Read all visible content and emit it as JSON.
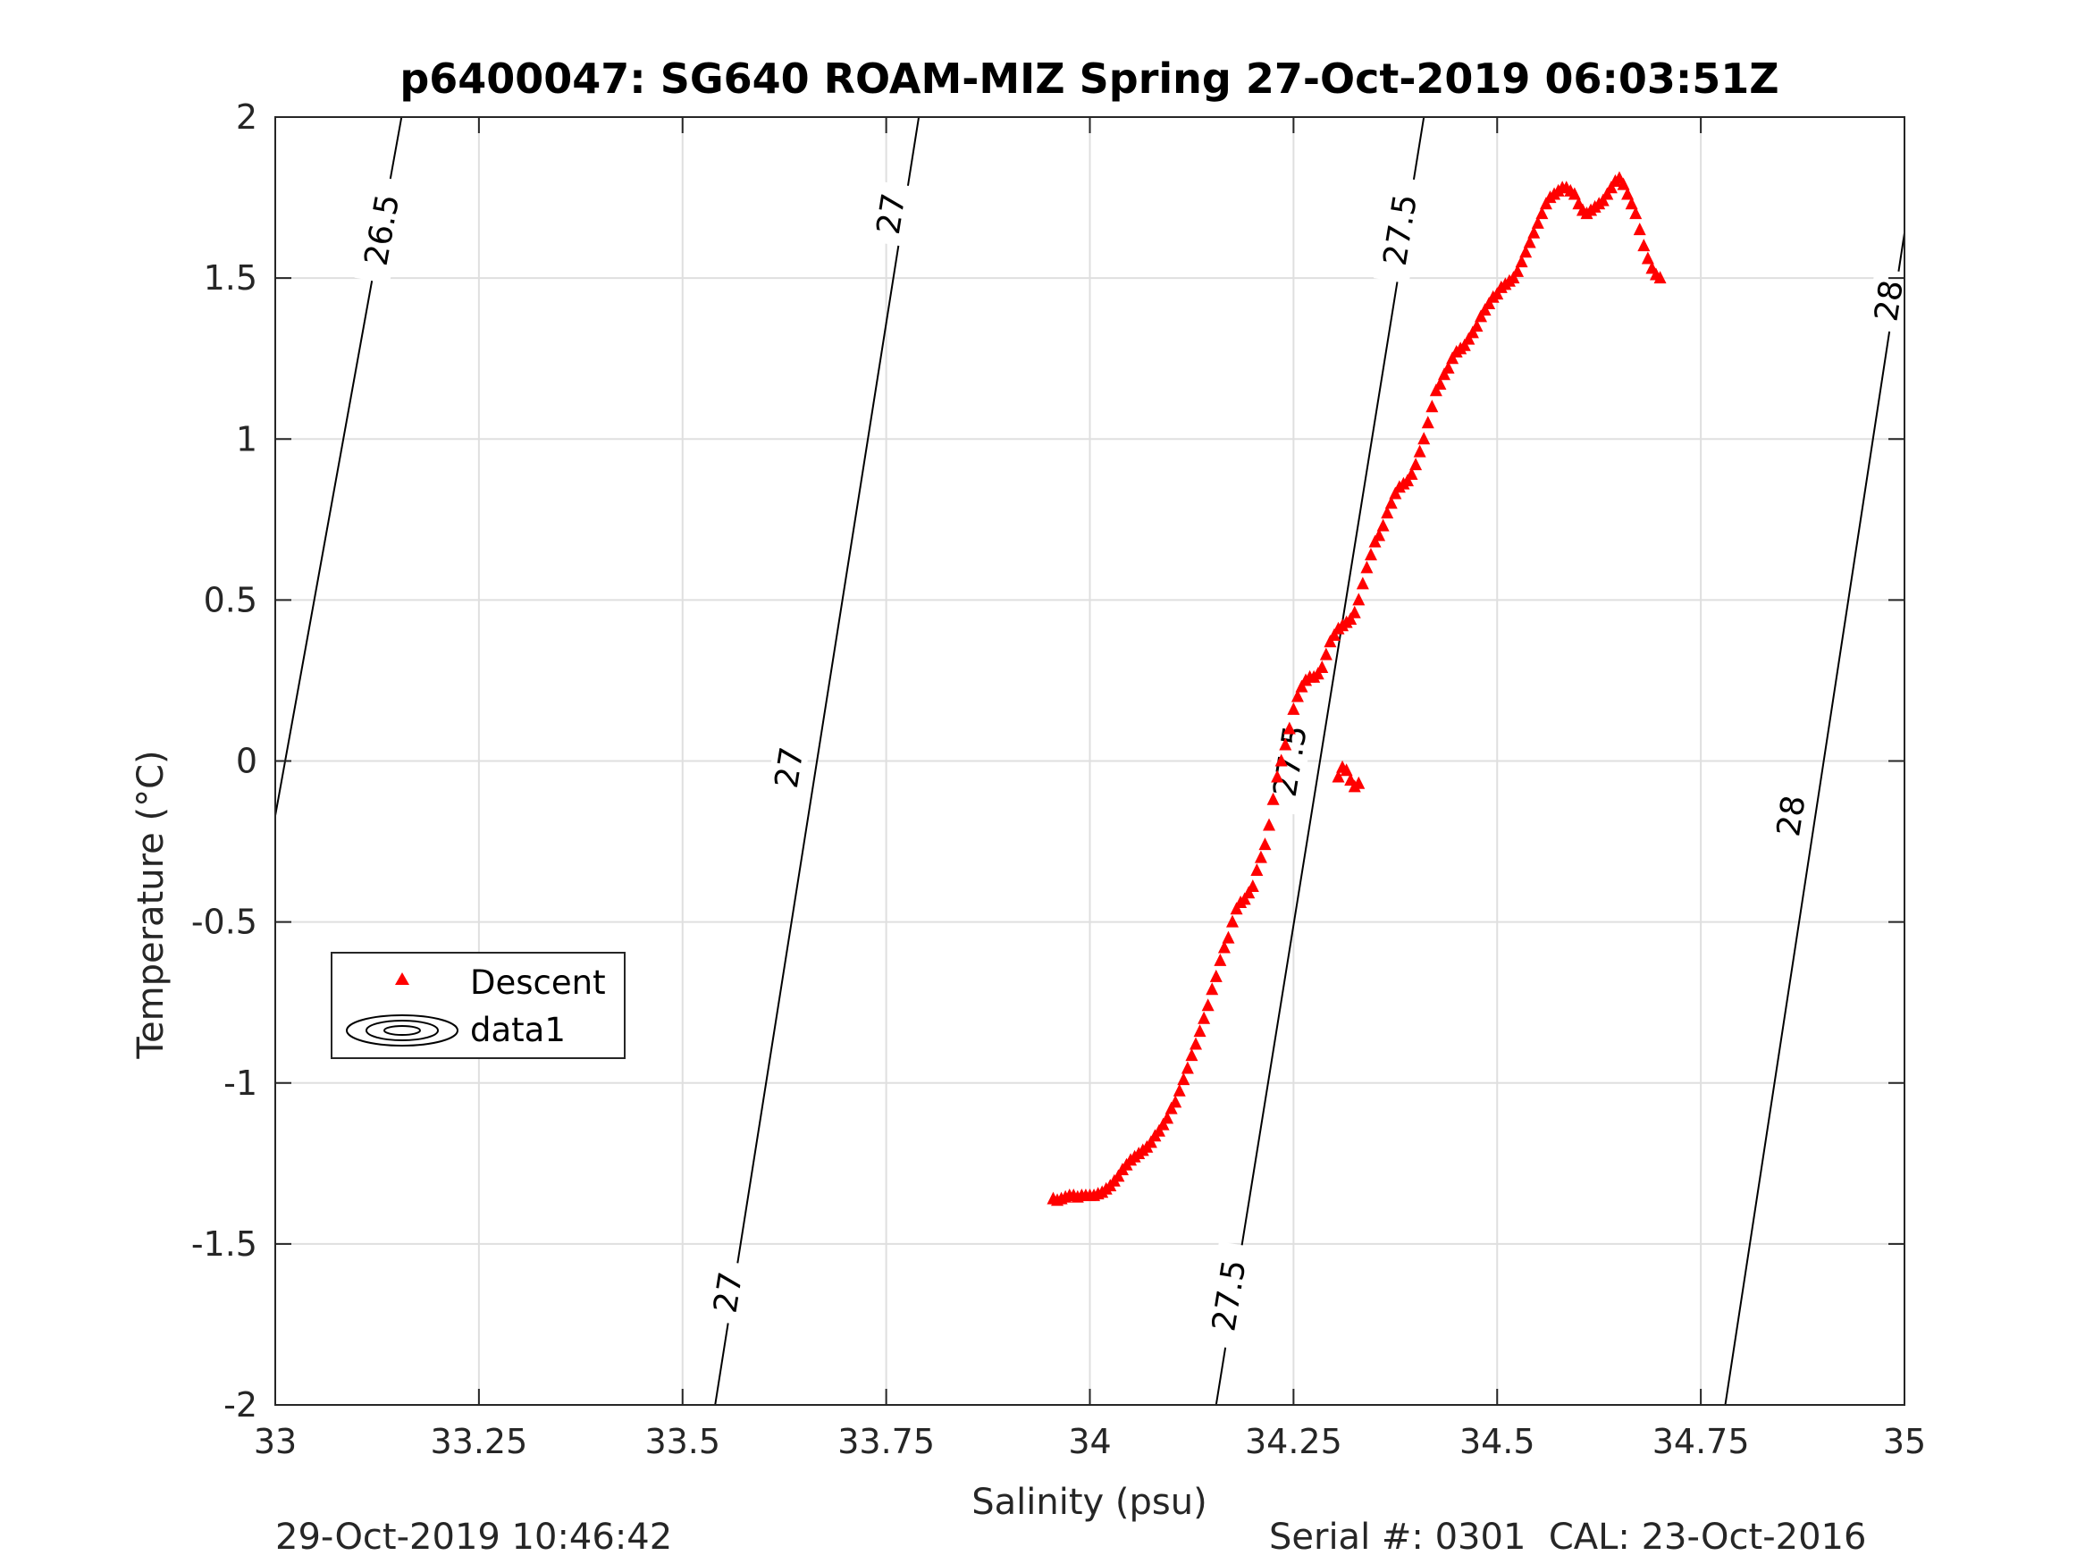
{
  "chart_data": {
    "type": "scatter",
    "title": "p6400047: SG640 ROAM-MIZ Spring 27-Oct-2019 06:03:51Z",
    "xlabel": "Salinity (psu)",
    "ylabel": "Temperature (°C)",
    "xlim": [
      33,
      35
    ],
    "ylim": [
      -2,
      2
    ],
    "xticks": [
      33,
      33.25,
      33.5,
      33.75,
      34,
      34.25,
      34.5,
      34.75,
      35
    ],
    "xtick_labels": [
      "33",
      "33.25",
      "33.5",
      "33.75",
      "34",
      "34.25",
      "34.5",
      "34.75",
      "35"
    ],
    "yticks": [
      -2,
      -1.5,
      -1,
      -0.5,
      0,
      0.5,
      1,
      1.5,
      2
    ],
    "ytick_labels": [
      "-2",
      "-1.5",
      "-1",
      "-0.5",
      "0",
      "0.5",
      "1",
      "1.5",
      "2"
    ],
    "grid": true,
    "legend": {
      "location": "left",
      "entries": [
        "Descent",
        "data1"
      ]
    },
    "series": [
      {
        "name": "Descent",
        "marker": "triangle",
        "color": "#ff0000",
        "x": [
          33.955,
          33.96,
          33.965,
          33.97,
          33.975,
          33.98,
          33.985,
          33.99,
          33.995,
          34.0,
          34.005,
          34.01,
          34.015,
          34.02,
          34.025,
          34.03,
          34.035,
          34.04,
          34.045,
          34.05,
          34.055,
          34.06,
          34.065,
          34.07,
          34.075,
          34.08,
          34.085,
          34.09,
          34.095,
          34.1,
          34.105,
          34.11,
          34.115,
          34.12,
          34.125,
          34.13,
          34.135,
          34.14,
          34.145,
          34.15,
          34.155,
          34.16,
          34.165,
          34.17,
          34.175,
          34.18,
          34.185,
          34.19,
          34.195,
          34.2,
          34.205,
          34.21,
          34.215,
          34.22,
          34.225,
          34.23,
          34.235,
          34.24,
          34.245,
          34.25,
          34.255,
          34.26,
          34.265,
          34.27,
          34.275,
          34.28,
          34.285,
          34.29,
          34.295,
          34.3,
          34.305,
          34.31,
          34.315,
          34.32,
          34.325,
          34.33,
          34.335,
          34.34,
          34.345,
          34.35,
          34.355,
          34.36,
          34.365,
          34.37,
          34.375,
          34.38,
          34.385,
          34.39,
          34.395,
          34.4,
          34.405,
          34.41,
          34.415,
          34.42,
          34.425,
          34.43,
          34.435,
          34.44,
          34.445,
          34.45,
          34.455,
          34.46,
          34.465,
          34.47,
          34.475,
          34.48,
          34.485,
          34.49,
          34.495,
          34.5,
          34.505,
          34.51,
          34.515,
          34.52,
          34.525,
          34.53,
          34.535,
          34.54,
          34.545,
          34.55,
          34.555,
          34.56,
          34.565,
          34.57,
          34.575,
          34.58,
          34.585,
          34.59,
          34.595,
          34.6,
          34.605,
          34.61,
          34.615,
          34.62,
          34.625,
          34.63,
          34.635,
          34.64,
          34.645,
          34.65,
          34.655,
          34.66,
          34.665,
          34.67,
          34.675,
          34.68,
          34.685,
          34.69,
          34.695,
          34.7,
          34.305,
          34.31,
          34.315,
          34.32,
          34.325,
          34.33
        ],
        "y": [
          -1.36,
          -1.365,
          -1.36,
          -1.355,
          -1.35,
          -1.35,
          -1.355,
          -1.35,
          -1.35,
          -1.35,
          -1.35,
          -1.345,
          -1.34,
          -1.33,
          -1.32,
          -1.305,
          -1.29,
          -1.27,
          -1.255,
          -1.24,
          -1.23,
          -1.22,
          -1.21,
          -1.2,
          -1.185,
          -1.165,
          -1.15,
          -1.13,
          -1.11,
          -1.08,
          -1.06,
          -1.025,
          -0.99,
          -0.955,
          -0.915,
          -0.88,
          -0.84,
          -0.8,
          -0.76,
          -0.71,
          -0.67,
          -0.62,
          -0.58,
          -0.55,
          -0.5,
          -0.46,
          -0.44,
          -0.43,
          -0.41,
          -0.39,
          -0.34,
          -0.3,
          -0.26,
          -0.2,
          -0.12,
          -0.05,
          0.0,
          0.05,
          0.1,
          0.16,
          0.2,
          0.23,
          0.25,
          0.26,
          0.26,
          0.27,
          0.29,
          0.33,
          0.37,
          0.39,
          0.41,
          0.42,
          0.43,
          0.44,
          0.46,
          0.5,
          0.55,
          0.6,
          0.64,
          0.68,
          0.7,
          0.73,
          0.77,
          0.8,
          0.83,
          0.85,
          0.86,
          0.87,
          0.89,
          0.92,
          0.96,
          1.0,
          1.05,
          1.1,
          1.15,
          1.17,
          1.2,
          1.22,
          1.25,
          1.27,
          1.28,
          1.29,
          1.31,
          1.33,
          1.35,
          1.38,
          1.4,
          1.42,
          1.44,
          1.45,
          1.47,
          1.48,
          1.49,
          1.5,
          1.52,
          1.55,
          1.58,
          1.61,
          1.64,
          1.67,
          1.7,
          1.73,
          1.75,
          1.76,
          1.77,
          1.78,
          1.78,
          1.77,
          1.76,
          1.73,
          1.71,
          1.7,
          1.71,
          1.72,
          1.73,
          1.74,
          1.76,
          1.78,
          1.8,
          1.81,
          1.79,
          1.76,
          1.73,
          1.7,
          1.65,
          1.6,
          1.56,
          1.53,
          1.51,
          1.5,
          -0.05,
          -0.02,
          -0.03,
          -0.06,
          -0.08,
          -0.07
        ]
      },
      {
        "name": "data1",
        "type": "contour",
        "color": "#000000",
        "isopycnals": [
          {
            "level": 26.5,
            "x": [
              33.0,
              33.155
            ],
            "y": [
              -0.17,
              2.0
            ]
          },
          {
            "level": 27,
            "x": [
              33.54,
              33.79
            ],
            "y": [
              -2.0,
              2.0
            ]
          },
          {
            "level": 27.5,
            "x": [
              34.155,
              34.41
            ],
            "y": [
              -2.0,
              2.0
            ]
          },
          {
            "level": 28,
            "x": [
              34.78,
              35.0
            ],
            "y": [
              -2.0,
              1.64
            ]
          }
        ],
        "labels": [
          {
            "text": "26.5",
            "x": 33.13,
            "y": 1.65
          },
          {
            "text": "27",
            "x": 33.755,
            "y": 1.7
          },
          {
            "text": "27",
            "x": 33.63,
            "y": -0.02
          },
          {
            "text": "27",
            "x": 33.555,
            "y": -1.65
          },
          {
            "text": "27.5",
            "x": 34.38,
            "y": 1.65
          },
          {
            "text": "27.5",
            "x": 34.245,
            "y": 0.0
          },
          {
            "text": "27.5",
            "x": 34.17,
            "y": -1.66
          },
          {
            "text": "28",
            "x": 34.98,
            "y": 1.43
          },
          {
            "text": "28",
            "x": 34.86,
            "y": -0.17
          }
        ]
      }
    ]
  },
  "footer": {
    "timestamp": "29-Oct-2019 10:46:42",
    "serial": "Serial #: 0301  CAL: 23-Oct-2016"
  },
  "colors": {
    "descent": "#ff0000",
    "axis": "#262626",
    "grid": "#dfdfdf"
  }
}
